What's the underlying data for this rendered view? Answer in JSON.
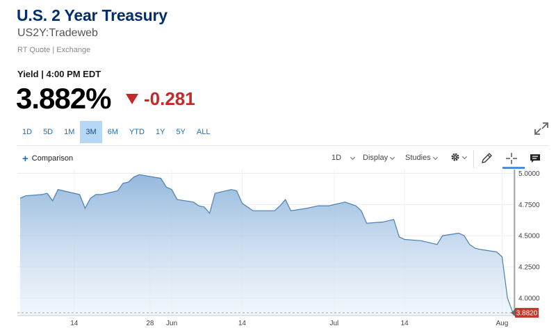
{
  "header": {
    "title": "U.S. 2 Year Treasury",
    "symbol": "US2Y:Tradeweb",
    "quote_source": "RT Quote | Exchange",
    "yield_label": "Yield | 4:00 PM EDT",
    "price": "3.882%",
    "change": "-0.281"
  },
  "ranges": {
    "items": [
      "1D",
      "5D",
      "1M",
      "3M",
      "6M",
      "YTD",
      "1Y",
      "5Y",
      "ALL"
    ],
    "active": "3M"
  },
  "toolbar": {
    "comparison_label": "Comparison",
    "interval_label": "1D",
    "display_label": "Display",
    "studies_label": "Studies",
    "icons": [
      "settings-gear-icon",
      "pencil-draw-icon",
      "crosshair-icon",
      "comment-icon",
      "expand-icon"
    ]
  },
  "chart_data": {
    "type": "area",
    "title": "",
    "xlabel": "",
    "ylabel": "",
    "ylim": [
      3.86,
      5.03
    ],
    "y_ticks": [
      5.0,
      4.75,
      4.5,
      4.25,
      4.0
    ],
    "y_tick_labels": [
      "5.0000",
      "4.7500",
      "4.5000",
      "4.2500",
      "4.0000"
    ],
    "x_tick_labels": [
      "14",
      "28",
      "Jun",
      "14",
      "Jul",
      "14",
      "Aug"
    ],
    "x_tick_dates": [
      "2023-05-14",
      "2023-05-28",
      "2023-06-01",
      "2023-06-14",
      "2023-07-01",
      "2023-07-14",
      "2023-08-01"
    ],
    "last_value_label": "3.8820",
    "grid": true,
    "line_color": "#4a7fb0",
    "fill_color": "#9cbde0",
    "series": [
      {
        "x": [
          "2023-05-04",
          "2023-05-05",
          "2023-05-08",
          "2023-05-09",
          "2023-05-10",
          "2023-05-11",
          "2023-05-12",
          "2023-05-15",
          "2023-05-16",
          "2023-05-17",
          "2023-05-18",
          "2023-05-19",
          "2023-05-22",
          "2023-05-23",
          "2023-05-24",
          "2023-05-25",
          "2023-05-26",
          "2023-05-30",
          "2023-05-31",
          "2023-06-01",
          "2023-06-02",
          "2023-06-05",
          "2023-06-06",
          "2023-06-07",
          "2023-06-08",
          "2023-06-09",
          "2023-06-12",
          "2023-06-13",
          "2023-06-14",
          "2023-06-15",
          "2023-06-16",
          "2023-06-20",
          "2023-06-21",
          "2023-06-22",
          "2023-06-23",
          "2023-06-26",
          "2023-06-27",
          "2023-06-28",
          "2023-06-29",
          "2023-06-30",
          "2023-07-03",
          "2023-07-05",
          "2023-07-06",
          "2023-07-07",
          "2023-07-10",
          "2023-07-11",
          "2023-07-12",
          "2023-07-13",
          "2023-07-14",
          "2023-07-17",
          "2023-07-18",
          "2023-07-19",
          "2023-07-20",
          "2023-07-21",
          "2023-07-24",
          "2023-07-25",
          "2023-07-26",
          "2023-07-27",
          "2023-07-28",
          "2023-07-31",
          "2023-08-01",
          "2023-08-02",
          "2023-08-03"
        ],
        "values": [
          4.8,
          4.82,
          4.83,
          4.84,
          4.78,
          4.87,
          4.86,
          4.83,
          4.72,
          4.8,
          4.83,
          4.83,
          4.86,
          4.92,
          4.93,
          4.97,
          4.99,
          4.96,
          4.89,
          4.87,
          4.79,
          4.77,
          4.74,
          4.73,
          4.68,
          4.84,
          4.87,
          4.86,
          4.76,
          4.73,
          4.7,
          4.7,
          4.74,
          4.79,
          4.7,
          4.72,
          4.73,
          4.74,
          4.74,
          4.74,
          4.77,
          4.74,
          4.7,
          4.6,
          4.61,
          4.62,
          4.63,
          4.49,
          4.47,
          4.46,
          4.45,
          4.44,
          4.43,
          4.5,
          4.52,
          4.5,
          4.43,
          4.4,
          4.39,
          4.37,
          4.33,
          4.0,
          3.882
        ]
      }
    ]
  }
}
